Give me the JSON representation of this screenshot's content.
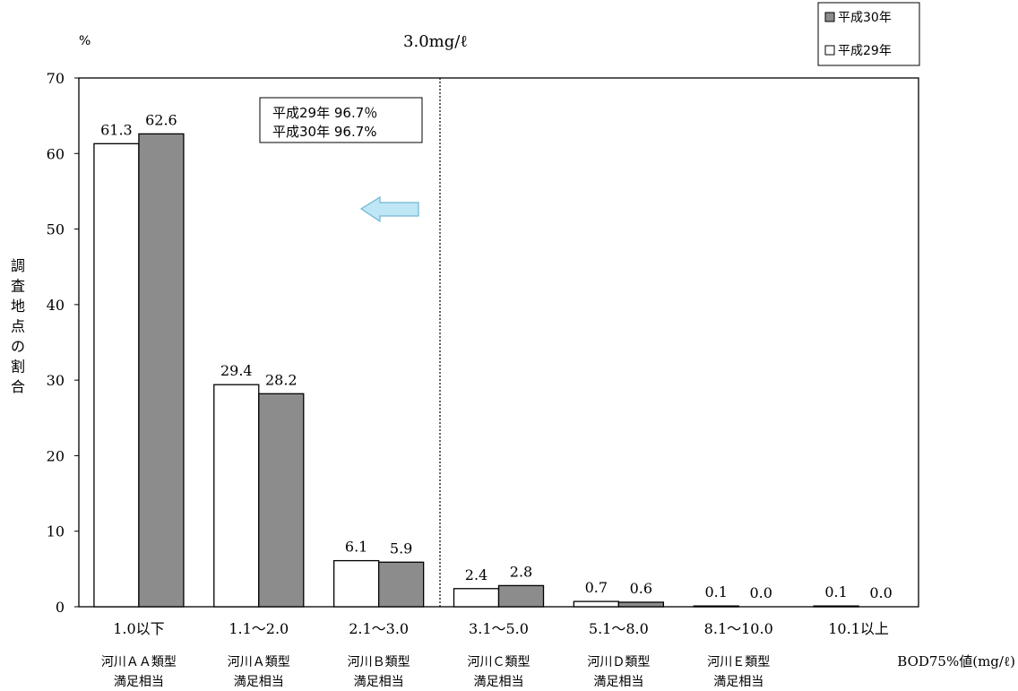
{
  "chart_data": {
    "type": "bar",
    "y_unit": "%",
    "threshold_label": "3.0mg/ℓ",
    "ylabel": "調査地点の割合",
    "xlabel": "BOD75%値(mg/ℓ)",
    "ylim": [
      0,
      70
    ],
    "yticks": [
      "0",
      "10",
      "20",
      "30",
      "40",
      "50",
      "60",
      "70"
    ],
    "categories": [
      "1.0以下",
      "1.1～2.0",
      "2.1～3.0",
      "3.1～5.0",
      "5.1～8.0",
      "8.1～10.0",
      "10.1以上"
    ],
    "category_notes": [
      [
        "河川ＡＡ類型",
        "満足相当"
      ],
      [
        "河川Ａ類型",
        "満足相当"
      ],
      [
        "河川Ｂ類型",
        "満足相当"
      ],
      [
        "河川Ｃ類型",
        "満足相当"
      ],
      [
        "河川Ｄ類型",
        "満足相当"
      ],
      [
        "河川Ｅ類型",
        "満足相当"
      ],
      [
        "",
        ""
      ]
    ],
    "series": [
      {
        "name": "平成29年",
        "values": [
          61.3,
          29.4,
          6.1,
          2.4,
          0.7,
          0.1,
          0.1
        ],
        "labels": [
          "61.3",
          "29.4",
          "6.1",
          "2.4",
          "0.7",
          "0.1",
          "0.1"
        ],
        "color": "#ffffff"
      },
      {
        "name": "平成30年",
        "values": [
          62.6,
          28.2,
          5.9,
          2.8,
          0.6,
          0.0,
          0.0
        ],
        "labels": [
          "62.6",
          "28.2",
          "5.9",
          "2.8",
          "0.6",
          "0.0",
          "0.0"
        ],
        "color": "#8c8c8c"
      }
    ],
    "legend_order": [
      "平成30年",
      "平成29年"
    ],
    "legend_position": "top-right",
    "annotation": [
      "平成29年 96.7％",
      "平成30年 96.7%"
    ],
    "arrow_direction": "left",
    "arrow_color": "#a8d8ec",
    "divider": "dotted line between 2.1～3.0 and 3.1～5.0",
    "grid": false
  }
}
